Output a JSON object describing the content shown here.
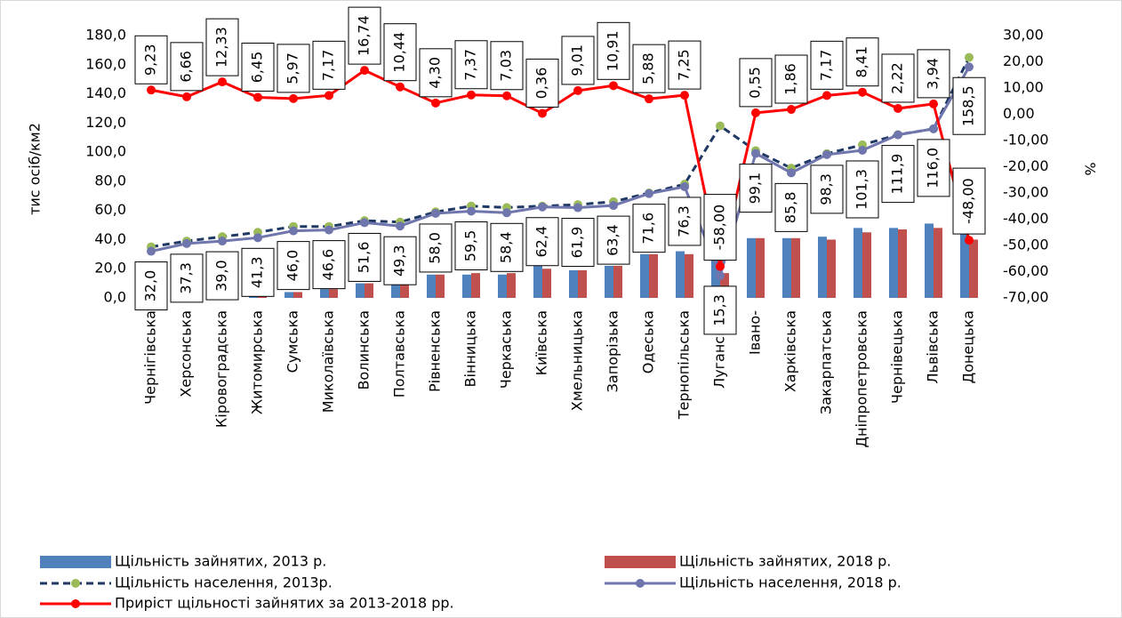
{
  "chart_data": {
    "type": "combo",
    "y_label": "тис осіб/км2",
    "y2_label": "%",
    "categories": [
      "Чернігівська",
      "Херсонська",
      "Кіровоградська",
      "Житомирська",
      "Сумська",
      "Миколаївська",
      "Волинська",
      "Полтавська",
      "Рівненська",
      "Вінницька",
      "Черкаська",
      "Київська",
      "Хмельницька",
      "Запорізька",
      "Одеська",
      "Тернопільська",
      "Луганська",
      "Івано-",
      "Харківська",
      "Закарпатська",
      "Дніпропетровська",
      "Чернівецька",
      "Львівська",
      "Донецька"
    ],
    "ylim": [
      0,
      180
    ],
    "yticks": [
      {
        "value": 0,
        "label": "0,0"
      },
      {
        "value": 20,
        "label": "20,0"
      },
      {
        "value": 40,
        "label": "40,0"
      },
      {
        "value": 60,
        "label": "60,0"
      },
      {
        "value": 80,
        "label": "80,0"
      },
      {
        "value": 100,
        "label": "100,0"
      },
      {
        "value": 120,
        "label": "120,0"
      },
      {
        "value": 140,
        "label": "140,0"
      },
      {
        "value": 160,
        "label": "160,0"
      },
      {
        "value": 180,
        "label": "180,0"
      }
    ],
    "y2lim": [
      -70,
      30
    ],
    "y2ticks": [
      {
        "value": -70,
        "label": "-70,00"
      },
      {
        "value": -60,
        "label": "-60,00"
      },
      {
        "value": -50,
        "label": "-50,00"
      },
      {
        "value": -40,
        "label": "-40,00"
      },
      {
        "value": -30,
        "label": "-30,00"
      },
      {
        "value": -20,
        "label": "-20,00"
      },
      {
        "value": -10,
        "label": "-10,00"
      },
      {
        "value": 0,
        "label": "0,00"
      },
      {
        "value": 10,
        "label": "10,00"
      },
      {
        "value": 20,
        "label": "20,00"
      },
      {
        "value": 30,
        "label": "30,00"
      }
    ],
    "series": [
      {
        "name": "Щільність зайнятих, 2013 р.",
        "kind": "bar",
        "color": "#4f81bd",
        "values": [
          2,
          3,
          3,
          4,
          4,
          6,
          10,
          9,
          16,
          16,
          16,
          22,
          19,
          22,
          30,
          32,
          33,
          41,
          41,
          42,
          48,
          48,
          51,
          50
        ]
      },
      {
        "name": "Щільність зайнятих, 2018 р.",
        "kind": "bar",
        "color": "#c0504d",
        "values": [
          2,
          3,
          3,
          4,
          4,
          6,
          10,
          9,
          16,
          17,
          17,
          20,
          19,
          22,
          30,
          30,
          17,
          41,
          41,
          40,
          45,
          47,
          48,
          40
        ]
      },
      {
        "name": "Щільність населення, 2013р.",
        "kind": "dashed",
        "color": "#1f3864",
        "marker_color": "#9bbb59",
        "values": [
          35,
          39,
          42,
          45,
          49,
          49,
          53,
          52,
          59,
          63,
          62,
          63,
          64,
          66,
          72,
          78,
          118,
          101,
          89,
          99,
          105,
          112,
          116,
          165
        ]
      },
      {
        "name": "Щільність населення, 2018 р.",
        "kind": "line",
        "color": "#6f75ad",
        "values": [
          32.0,
          37.3,
          39.0,
          41.3,
          46.0,
          46.6,
          51.6,
          49.3,
          58.0,
          59.5,
          58.4,
          62.4,
          61.9,
          63.4,
          71.6,
          76.3,
          15.3,
          99.1,
          85.8,
          98.3,
          101.3,
          111.9,
          116.0,
          158.5
        ],
        "value_labels": [
          "32,0",
          "37,3",
          "39,0",
          "41,3",
          "46,0",
          "46,6",
          "51,6",
          "49,3",
          "58,0",
          "59,5",
          "58,4",
          "62,4",
          "61,9",
          "63,4",
          "71,6",
          "76,3",
          "15,3",
          "99,1",
          "85,8",
          "98,3",
          "101,3",
          "111,9",
          "116,0",
          "158,5"
        ]
      },
      {
        "name": "Приріст щільності зайнятих за 2013-2018 рр.",
        "kind": "line",
        "axis": "y2",
        "color": "#ff0000",
        "values": [
          9.23,
          6.66,
          12.33,
          6.45,
          5.97,
          7.17,
          16.74,
          10.44,
          4.3,
          7.37,
          7.03,
          0.36,
          9.01,
          10.91,
          5.88,
          7.25,
          -58.0,
          0.55,
          1.86,
          7.17,
          8.41,
          2.22,
          3.94,
          -48.0
        ],
        "value_labels": [
          "9,23",
          "6,66",
          "12,33",
          "6,45",
          "5,97",
          "7,17",
          "16,74",
          "10,44",
          "4,30",
          "7,37",
          "7,03",
          "0,36",
          "9,01",
          "10,91",
          "5,88",
          "7,25",
          "-58,00",
          "0,55",
          "1,86",
          "7,17",
          "8,41",
          "2,22",
          "3,94",
          "-48,00"
        ]
      }
    ]
  }
}
